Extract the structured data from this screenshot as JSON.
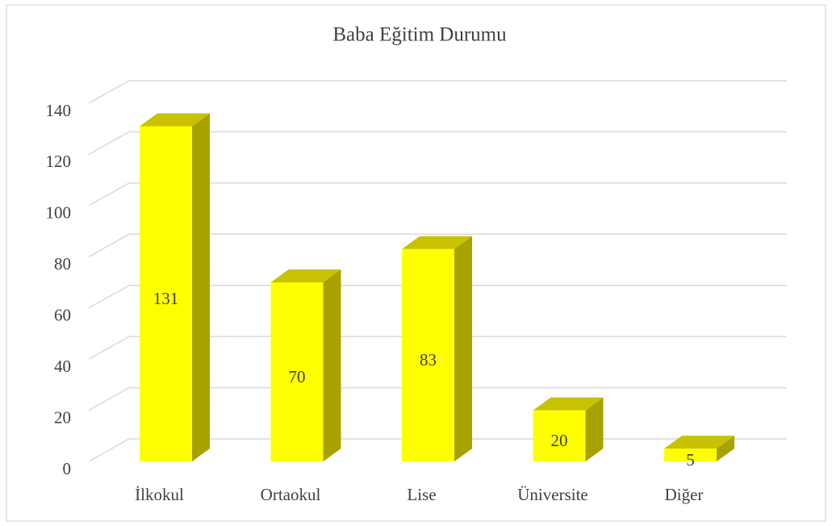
{
  "chart_data": {
    "type": "bar3d",
    "title": "Baba Eğitim Durumu",
    "categories": [
      "İlkokul",
      "Ortaokul",
      "Lise",
      "Üniversite",
      "Diğer"
    ],
    "values": [
      131,
      70,
      83,
      20,
      5
    ],
    "color": "#ffff00",
    "ylim": [
      0,
      140
    ],
    "yticks": [
      0,
      20,
      40,
      60,
      80,
      100,
      120,
      140
    ],
    "grid": true
  }
}
